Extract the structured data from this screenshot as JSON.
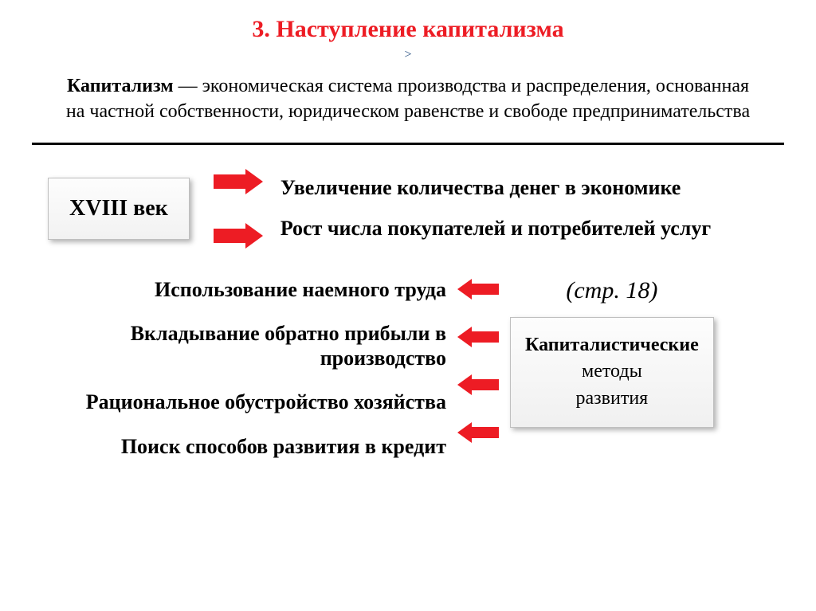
{
  "title": "3. Наступление капитализма",
  "chevron": ">",
  "definition": {
    "term": "Капитализм",
    "rest": " — экономическая система производства и распределения, основанная на частной собственности, юридическом равенстве и свободе предпринимательства"
  },
  "colors": {
    "accent_red": "#ed1c24",
    "text_black": "#000000",
    "chevron_blue": "#1f497d",
    "box_border": "#bfbfbf",
    "box_bg_top": "#fdfdfd",
    "box_bg_bottom": "#f0f0f0",
    "background": "#ffffff"
  },
  "section1": {
    "century_label": "XVIII век",
    "points": [
      "Увеличение количества денег в экономике",
      "Рост числа покупателей  и потребителей услуг"
    ]
  },
  "section2": {
    "page_ref": "(стр. 18)",
    "methods_box": {
      "line1_bold": "Капиталистические",
      "line2": "методы",
      "line3": "развития"
    },
    "methods": [
      "Использование наемного труда",
      "Вкладывание обратно прибыли в производство",
      "Рациональное обустройство хозяйства",
      "Поиск способов развития в кредит"
    ]
  },
  "diagram": {
    "type": "infographic",
    "arrow_color": "#ed1c24",
    "right_arrow_count": 2,
    "left_arrow_count": 4,
    "box_shadow": "3px 3px 6px rgba(0,0,0,0.3)",
    "title_fontsize": 30,
    "definition_fontsize": 24,
    "body_fontsize": 26,
    "methods_box_fontsize": 24,
    "page_ref_fontsize": 30
  }
}
